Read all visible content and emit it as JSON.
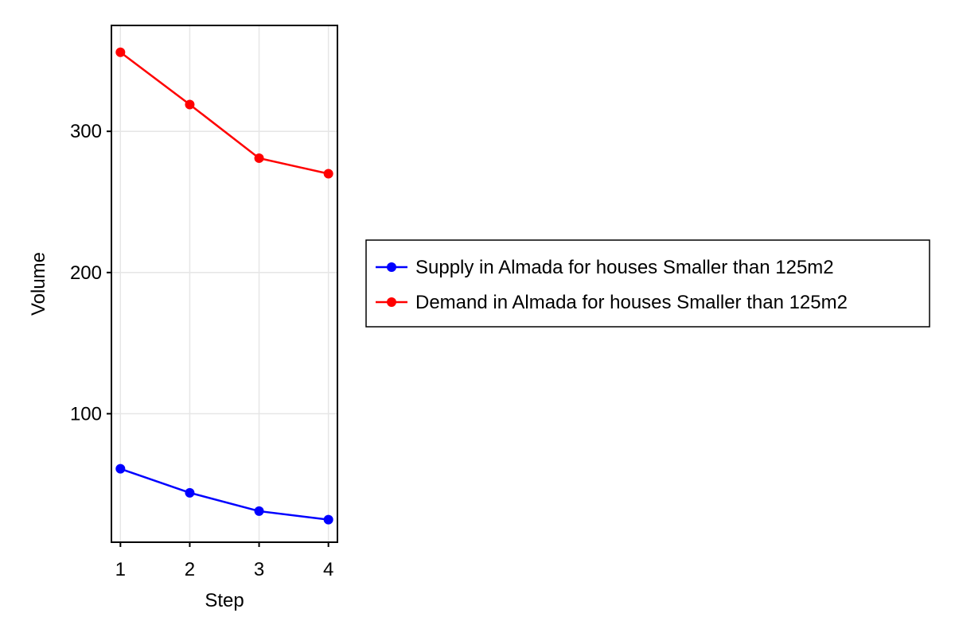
{
  "chart_data": {
    "type": "line",
    "xlabel": "Step",
    "ylabel": "Volume",
    "x": [
      1,
      2,
      3,
      4
    ],
    "xlim": [
      0.87,
      4.13
    ],
    "ylim": [
      9,
      375
    ],
    "xticks": [
      1,
      2,
      3,
      4
    ],
    "xtick_labels": [
      "1",
      "2",
      "3",
      "4"
    ],
    "yticks": [
      100,
      200,
      300
    ],
    "ytick_labels": [
      "100",
      "200",
      "300"
    ],
    "grid": true,
    "legend_position": "right",
    "series": [
      {
        "name": "Supply in Almada for houses Smaller than 125m2",
        "color": "#0000ff",
        "values": [
          61,
          44,
          31,
          25
        ]
      },
      {
        "name": "Demand in Almada for houses Smaller than 125m2",
        "color": "#ff0000",
        "values": [
          356,
          319,
          281,
          270
        ]
      }
    ]
  }
}
